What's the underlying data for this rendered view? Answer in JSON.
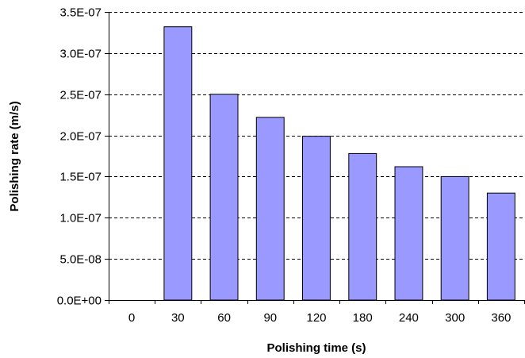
{
  "chart_data": {
    "type": "bar",
    "title": "",
    "xlabel": "Polishing time (s)",
    "ylabel": "Polishing rate (m/s)",
    "categories": [
      "0",
      "30",
      "60",
      "90",
      "120",
      "180",
      "240",
      "300",
      "360"
    ],
    "values": [
      0,
      3.32e-07,
      2.5e-07,
      2.22e-07,
      1.99e-07,
      1.78e-07,
      1.62e-07,
      1.5e-07,
      1.3e-07
    ],
    "ylim": [
      0,
      3.5e-07
    ],
    "yticks": [
      0,
      5e-08,
      1e-07,
      1.5e-07,
      2e-07,
      2.5e-07,
      3e-07,
      3.5e-07
    ],
    "ytick_labels": [
      "0.0E+00",
      "5.0E-08",
      "1.0E-07",
      "1.5E-07",
      "2.0E-07",
      "2.5E-07",
      "3.0E-07",
      "3.5E-07"
    ],
    "grid": "horizontal dashed",
    "legend": "none",
    "colors": {
      "bar_fill": "#9999ff",
      "bar_stroke": "#000000",
      "grid": "#000000"
    }
  }
}
